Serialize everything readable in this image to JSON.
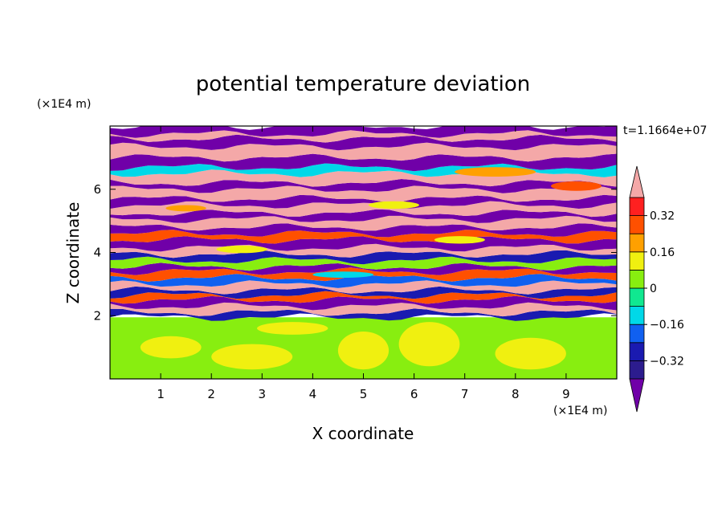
{
  "chart_data": {
    "type": "heatmap",
    "title": "potential temperature deviation",
    "xlabel": "X coordinate",
    "ylabel": "Z coordinate",
    "x_unit": "(×1E4 m)",
    "y_unit": "(×1E4 m)",
    "time_label": "t=1.1664e+07",
    "xlim": [
      0,
      10
    ],
    "ylim": [
      0,
      8
    ],
    "x_ticks": [
      1,
      2,
      3,
      4,
      5,
      6,
      7,
      8,
      9
    ],
    "y_ticks": [
      2,
      4,
      6
    ],
    "colorbar": {
      "levels": [
        -0.4,
        -0.32,
        -0.24,
        -0.16,
        -0.08,
        0,
        0.08,
        0.16,
        0.24,
        0.32,
        0.4
      ],
      "labels": [
        "0.32",
        "0.16",
        "0",
        "−0.16",
        "−0.32"
      ],
      "label_values": [
        0.32,
        0.16,
        0,
        -0.16,
        -0.32
      ],
      "colors": [
        "#2c1c8e",
        "#1a1ab0",
        "#1060f0",
        "#00d8e8",
        "#10e890",
        "#88ee10",
        "#f0f010",
        "#ffa000",
        "#ff5000",
        "#ff2020"
      ],
      "under_color": "#7000a8",
      "over_color": "#f4a8a8"
    },
    "bands": [
      {
        "z0": 0.0,
        "z1": 1.95,
        "value": 0.02
      },
      {
        "z0": 1.95,
        "z1": 2.1,
        "value": -0.3
      },
      {
        "z0": 2.1,
        "z1": 2.3,
        "value": 0.45
      },
      {
        "z0": 2.3,
        "z1": 2.5,
        "value": -0.45
      },
      {
        "z0": 2.5,
        "z1": 2.65,
        "value": 0.3
      },
      {
        "z0": 2.65,
        "z1": 2.8,
        "value": -0.32
      },
      {
        "z0": 2.8,
        "z1": 3.0,
        "value": 0.45
      },
      {
        "z0": 3.0,
        "z1": 3.2,
        "value": -0.2
      },
      {
        "z0": 3.2,
        "z1": 3.4,
        "value": 0.25
      },
      {
        "z0": 3.4,
        "z1": 3.55,
        "value": -0.45
      },
      {
        "z0": 3.55,
        "z1": 3.75,
        "value": 0.05
      },
      {
        "z0": 3.75,
        "z1": 3.95,
        "value": -0.3
      },
      {
        "z0": 3.95,
        "z1": 4.15,
        "value": 0.45
      },
      {
        "z0": 4.15,
        "z1": 4.4,
        "value": -0.45
      },
      {
        "z0": 4.4,
        "z1": 4.6,
        "value": 0.3
      },
      {
        "z0": 4.6,
        "z1": 4.8,
        "value": -0.45
      },
      {
        "z0": 4.8,
        "z1": 5.05,
        "value": 0.45
      },
      {
        "z0": 5.05,
        "z1": 5.25,
        "value": -0.45
      },
      {
        "z0": 5.25,
        "z1": 5.5,
        "value": 0.45
      },
      {
        "z0": 5.5,
        "z1": 5.7,
        "value": -0.45
      },
      {
        "z0": 5.7,
        "z1": 6.0,
        "value": 0.45
      },
      {
        "z0": 6.0,
        "z1": 6.2,
        "value": -0.45
      },
      {
        "z0": 6.2,
        "z1": 6.5,
        "value": 0.45
      },
      {
        "z0": 6.5,
        "z1": 6.7,
        "value": -0.1
      },
      {
        "z0": 6.7,
        "z1": 7.0,
        "value": -0.45
      },
      {
        "z0": 7.0,
        "z1": 7.35,
        "value": 0.45
      },
      {
        "z0": 7.35,
        "z1": 7.6,
        "value": -0.45
      },
      {
        "z0": 7.6,
        "z1": 7.75,
        "value": 0.45
      },
      {
        "z0": 7.75,
        "z1": 8.0,
        "value": -0.45
      }
    ],
    "patches": [
      {
        "x": 1.2,
        "z": 1.0,
        "rx": 0.6,
        "rz": 0.35,
        "value": 0.1
      },
      {
        "x": 2.8,
        "z": 0.7,
        "rx": 0.8,
        "rz": 0.4,
        "value": 0.1
      },
      {
        "x": 5.0,
        "z": 0.9,
        "rx": 0.5,
        "rz": 0.6,
        "value": 0.1
      },
      {
        "x": 6.3,
        "z": 1.1,
        "rx": 0.6,
        "rz": 0.7,
        "value": 0.1
      },
      {
        "x": 8.3,
        "z": 0.8,
        "rx": 0.7,
        "rz": 0.5,
        "value": 0.1
      },
      {
        "x": 3.6,
        "z": 1.6,
        "rx": 0.7,
        "rz": 0.2,
        "value": 0.1
      },
      {
        "x": 2.6,
        "z": 4.1,
        "rx": 0.5,
        "rz": 0.12,
        "value": 0.1
      },
      {
        "x": 4.6,
        "z": 3.3,
        "rx": 0.6,
        "rz": 0.1,
        "value": -0.1
      },
      {
        "x": 6.9,
        "z": 4.4,
        "rx": 0.5,
        "rz": 0.12,
        "value": 0.1
      },
      {
        "x": 7.6,
        "z": 6.55,
        "rx": 0.8,
        "rz": 0.15,
        "value": 0.2
      },
      {
        "x": 1.5,
        "z": 5.4,
        "rx": 0.4,
        "rz": 0.1,
        "value": 0.2
      },
      {
        "x": 5.6,
        "z": 5.5,
        "rx": 0.5,
        "rz": 0.12,
        "value": 0.1
      },
      {
        "x": 9.2,
        "z": 6.1,
        "rx": 0.5,
        "rz": 0.15,
        "value": 0.25
      }
    ]
  }
}
